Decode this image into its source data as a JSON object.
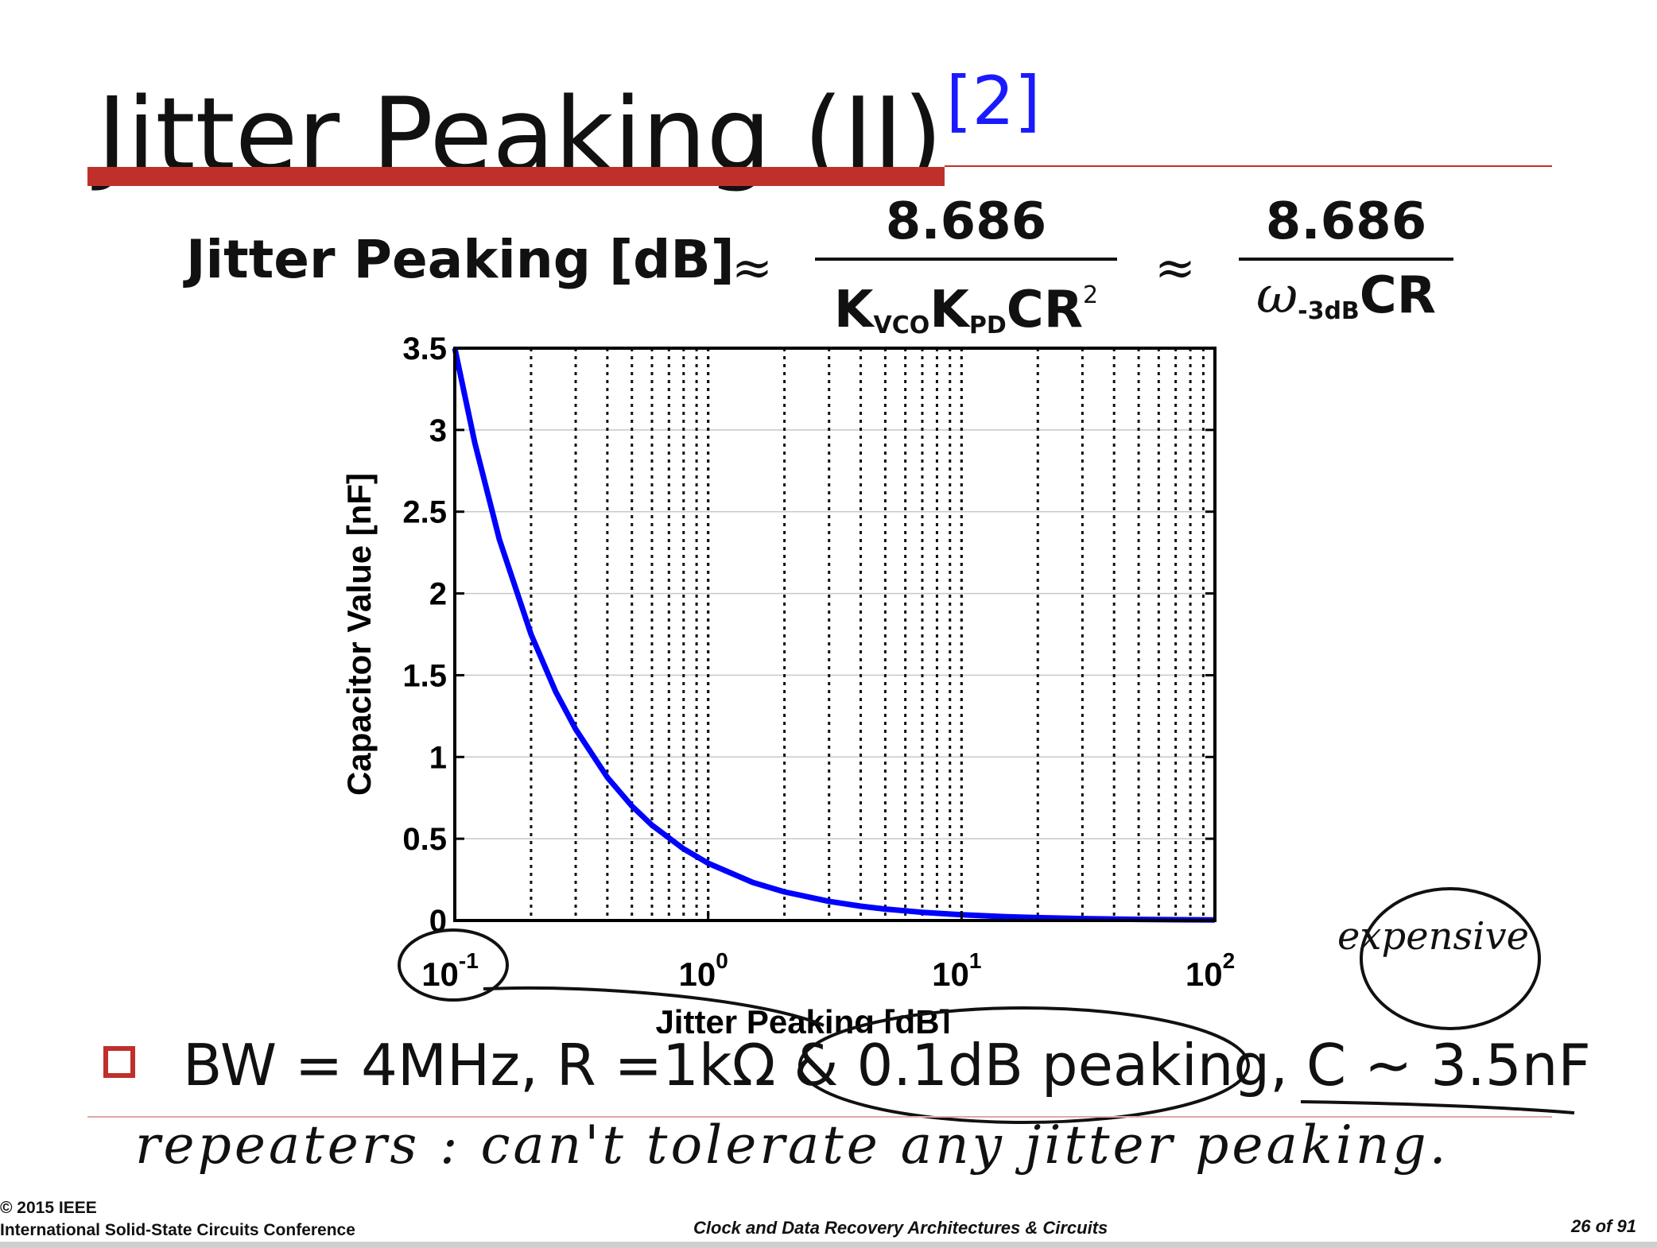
{
  "slide": {
    "title": "Jitter Peaking (II)",
    "title_ref": "[2]",
    "colors": {
      "accent": "#c0302a",
      "ref": "#1a1aff",
      "curve": "#0000ff"
    }
  },
  "formula": {
    "lhs": "Jitter Peaking [dB]",
    "approx": "≈",
    "frac1_num": "8.686",
    "frac1_den_k1": "K",
    "frac1_den_sub1": "VCO",
    "frac1_den_k2": "K",
    "frac1_den_sub2": "PD",
    "frac1_den_cr": "CR",
    "frac1_den_sup": "2",
    "frac2_num": "8.686",
    "frac2_den_omega": "ω",
    "frac2_den_sub": "-3dB",
    "frac2_den_cr": "CR"
  },
  "chart_data": {
    "type": "line",
    "xlabel": "Jitter Peaking [dB]",
    "ylabel": "Capacitor Value [nF]",
    "xscale": "log",
    "xlim": [
      0.1,
      100
    ],
    "ylim": [
      0,
      3.5
    ],
    "yticks": [
      "0",
      "0.5",
      "1",
      "1.5",
      "2",
      "2.5",
      "3",
      "3.5"
    ],
    "xticks": [
      {
        "base": "10",
        "exp": "-1"
      },
      {
        "base": "10",
        "exp": "0"
      },
      {
        "base": "10",
        "exp": "1"
      },
      {
        "base": "10",
        "exp": "2"
      }
    ],
    "grid": true,
    "series": [
      {
        "x": [
          0.1,
          0.12,
          0.15,
          0.2,
          0.25,
          0.3,
          0.4,
          0.5,
          0.6,
          0.8,
          1,
          1.5,
          2,
          3,
          4,
          5,
          7,
          10,
          15,
          20,
          30,
          50,
          70,
          100
        ],
        "y": [
          3.5,
          2.92,
          2.33,
          1.75,
          1.4,
          1.17,
          0.875,
          0.7,
          0.583,
          0.438,
          0.35,
          0.233,
          0.175,
          0.117,
          0.0875,
          0.07,
          0.05,
          0.035,
          0.0233,
          0.0175,
          0.0117,
          0.007,
          0.005,
          0.0035
        ]
      }
    ]
  },
  "bullet": {
    "text": "BW = 4MHz, R =1kΩ & 0.1dB peaking, C ~ 3.5nF"
  },
  "handwriting": {
    "note": "repeaters : can't tolerate any jitter peaking.",
    "side": "expensive"
  },
  "footer": {
    "copyright": "© 2015 IEEE",
    "conference": "International Solid-State Circuits Conference",
    "course": "Clock and Data Recovery Architectures & Circuits",
    "page": "26 of 91"
  }
}
